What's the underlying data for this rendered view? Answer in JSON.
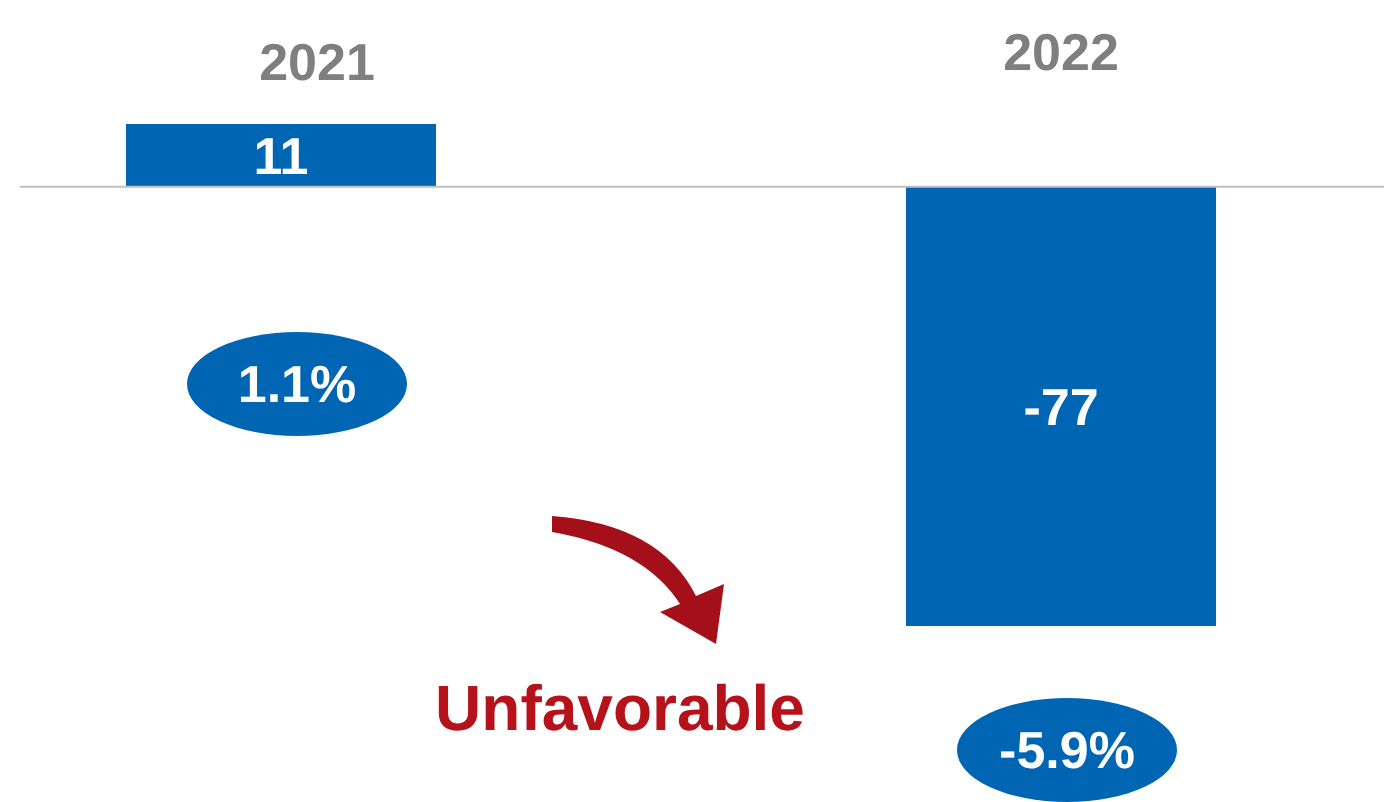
{
  "chart_data": {
    "type": "bar",
    "categories": [
      "2021",
      "2022"
    ],
    "values": [
      11,
      -77
    ],
    "color": "#0066b3",
    "data_labels": true,
    "annotations": [
      "1.1%",
      "-5.9%",
      "Unfavorable"
    ]
  }
}
